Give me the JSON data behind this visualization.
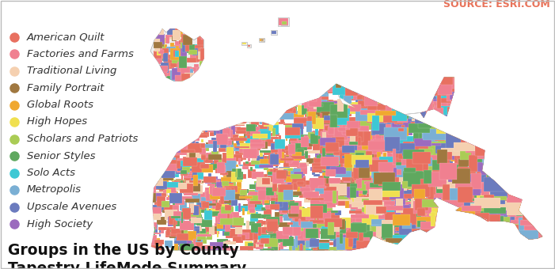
{
  "title_line1": "Tapestry LifeMode Summary",
  "title_line2": "Groups in the US by County",
  "source_text": "SOURCE: ESRI.COM",
  "source_color": "#E8735A",
  "background_color": "#FFFFFF",
  "border_color": "#CCCCCC",
  "legend_items": [
    {
      "label": "High Society",
      "color": "#9B6BBE"
    },
    {
      "label": "Upscale Avenues",
      "color": "#6B7BBE"
    },
    {
      "label": "Metropolis",
      "color": "#7AAFD4"
    },
    {
      "label": "Solo Acts",
      "color": "#3EC8D4"
    },
    {
      "label": "Senior Styles",
      "color": "#5FA85F"
    },
    {
      "label": "Scholars and Patriots",
      "color": "#AACC55"
    },
    {
      "label": "High Hopes",
      "color": "#F0E050"
    },
    {
      "label": "Global Roots",
      "color": "#F0A830"
    },
    {
      "label": "Family Portrait",
      "color": "#A07840"
    },
    {
      "label": "Traditional Living",
      "color": "#F5D0B0"
    },
    {
      "label": "Factories and Farms",
      "color": "#F08090"
    },
    {
      "label": "American Quilt",
      "color": "#E87060"
    }
  ],
  "map_colors": [
    "#E87060",
    "#F08090",
    "#5FA85F",
    "#AACC55",
    "#7AAFD4",
    "#9B6BBE",
    "#3EC8D4",
    "#F0E050",
    "#F0A830",
    "#A07840",
    "#F5D0B0",
    "#6B7BBE"
  ],
  "weights": [
    0.26,
    0.2,
    0.09,
    0.06,
    0.06,
    0.05,
    0.04,
    0.03,
    0.04,
    0.04,
    0.06,
    0.07
  ],
  "title_fontsize": 13.5,
  "legend_fontsize": 9.5,
  "source_fontsize": 9
}
